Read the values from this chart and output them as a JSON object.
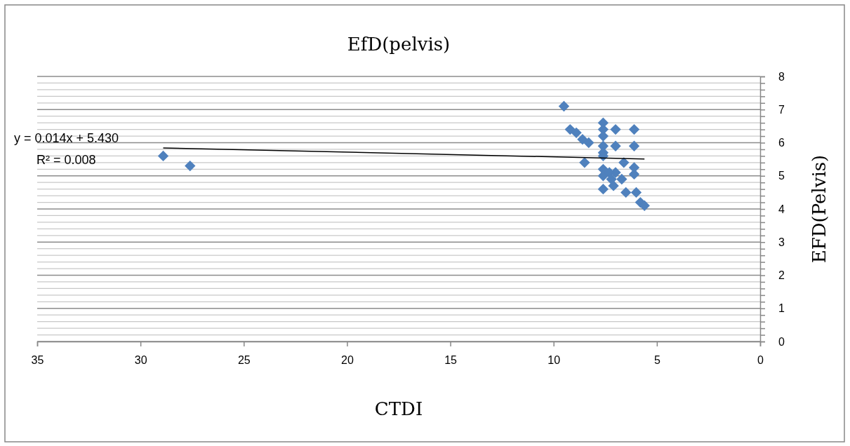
{
  "chart_data": {
    "type": "scatter",
    "title": "EfD(pelvis)",
    "xlabel": "CTDI",
    "ylabel": "EFD(Pelvis)",
    "xlim": [
      35,
      0
    ],
    "xticks": [
      35,
      30,
      25,
      20,
      15,
      10,
      5,
      0
    ],
    "ylim": [
      0,
      8
    ],
    "yticks": [
      0,
      {
        "value": 0.2,
        "label": null
      },
      {
        "value": 0.4,
        "label": null
      },
      {
        "value": 0.6,
        "label": null
      },
      {
        "value": 0.8,
        "label": null
      },
      1,
      {
        "value": 1.2,
        "label": null
      },
      {
        "value": 1.4,
        "label": null
      },
      {
        "value": 1.6,
        "label": null
      },
      {
        "value": 1.8,
        "label": null
      },
      2,
      {
        "value": 2.2,
        "label": null
      },
      {
        "value": 2.4,
        "label": null
      },
      {
        "value": 2.6,
        "label": null
      },
      {
        "value": 2.8,
        "label": null
      },
      3,
      {
        "value": 3.2,
        "label": null
      },
      {
        "value": 3.4,
        "label": null
      },
      {
        "value": 3.6,
        "label": null
      },
      {
        "value": 3.8,
        "label": null
      },
      4,
      {
        "value": 4.2,
        "label": null
      },
      {
        "value": 4.4,
        "label": null
      },
      {
        "value": 4.6,
        "label": null
      },
      {
        "value": 4.8,
        "label": null
      },
      5,
      {
        "value": 5.2,
        "label": null
      },
      {
        "value": 5.4,
        "label": null
      },
      {
        "value": 5.6,
        "label": null
      },
      {
        "value": 5.8,
        "label": null
      },
      6,
      {
        "value": 6.2,
        "label": null
      },
      {
        "value": 6.4,
        "label": null
      },
      {
        "value": 6.6,
        "label": null
      },
      {
        "value": 6.8,
        "label": null
      },
      7,
      {
        "value": 7.2,
        "label": null
      },
      {
        "value": 7.4,
        "label": null
      },
      {
        "value": 7.6,
        "label": null
      },
      {
        "value": 7.8,
        "label": null
      },
      8
    ],
    "grid": "y",
    "marker": "diamond",
    "series": [
      {
        "color": "#4f81bd",
        "x": [
          28.9,
          27.6,
          9.5,
          9.2,
          8.9,
          8.6,
          8.3,
          8.5,
          7.6,
          7.6,
          7.6,
          7.6,
          7.6,
          7.6,
          7.6,
          7.6,
          7.6,
          7.0,
          6.1,
          7.0,
          6.1,
          6.6,
          6.1,
          6.1,
          7.0,
          6.7,
          7.1,
          6.5,
          6.0,
          5.8,
          5.6,
          7.3,
          7.2
        ],
        "values": [
          5.6,
          5.3,
          7.1,
          6.4,
          6.3,
          6.1,
          6.0,
          5.4,
          6.6,
          6.4,
          6.2,
          5.9,
          5.7,
          5.6,
          5.2,
          5.0,
          4.6,
          6.4,
          6.4,
          5.9,
          5.9,
          5.4,
          5.25,
          5.05,
          5.1,
          4.9,
          4.7,
          4.5,
          4.5,
          4.2,
          4.1,
          5.1,
          4.9
        ]
      },
      {
        "type": "line",
        "color": "#000000",
        "line_style": "solid",
        "marker": "none",
        "x": [
          28.9,
          5.6
        ],
        "values": [
          5.84,
          5.51
        ]
      }
    ],
    "annotations": [
      "y = 0.014x + 5.430",
      "R² = 0.008"
    ]
  }
}
